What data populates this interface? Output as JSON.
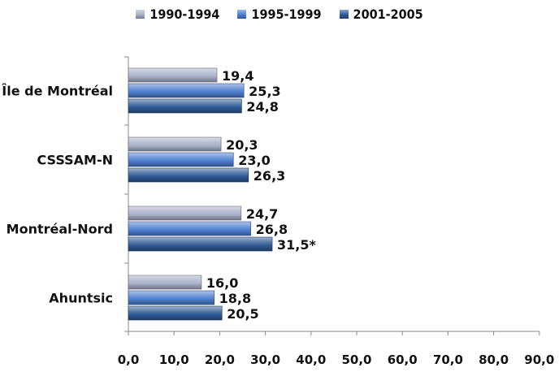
{
  "chart_data": {
    "type": "bar",
    "orientation": "horizontal",
    "categories": [
      "Île de Montréal",
      "CSSSAM-N",
      "Montréal-Nord",
      "Ahuntsic"
    ],
    "series": [
      {
        "name": "1990-1994",
        "color": "#a9b1c9",
        "values": [
          19.4,
          20.3,
          24.7,
          16.0
        ],
        "labels": [
          "19,4",
          "20,3",
          "24,7",
          "16,0"
        ]
      },
      {
        "name": "1995-1999",
        "color": "#4f7fd0",
        "values": [
          25.3,
          23.0,
          26.8,
          18.8
        ],
        "labels": [
          "25,3",
          "23,0",
          "26,8",
          "18,8"
        ]
      },
      {
        "name": "2001-2005",
        "color": "#2f5a96",
        "values": [
          24.8,
          26.3,
          31.5,
          20.5
        ],
        "labels": [
          "24,8",
          "26,3",
          "31,5*",
          "20,5"
        ]
      }
    ],
    "xlim": [
      0,
      90
    ],
    "xticks": [
      0,
      10,
      20,
      30,
      40,
      50,
      60,
      70,
      80,
      90
    ],
    "xtick_labels": [
      "0,0",
      "10,0",
      "20,0",
      "30,0",
      "40,0",
      "50,0",
      "60,0",
      "70,0",
      "80,0",
      "90,0"
    ],
    "legend_position": "top",
    "grid": false,
    "title": "",
    "xlabel": "",
    "ylabel": ""
  }
}
